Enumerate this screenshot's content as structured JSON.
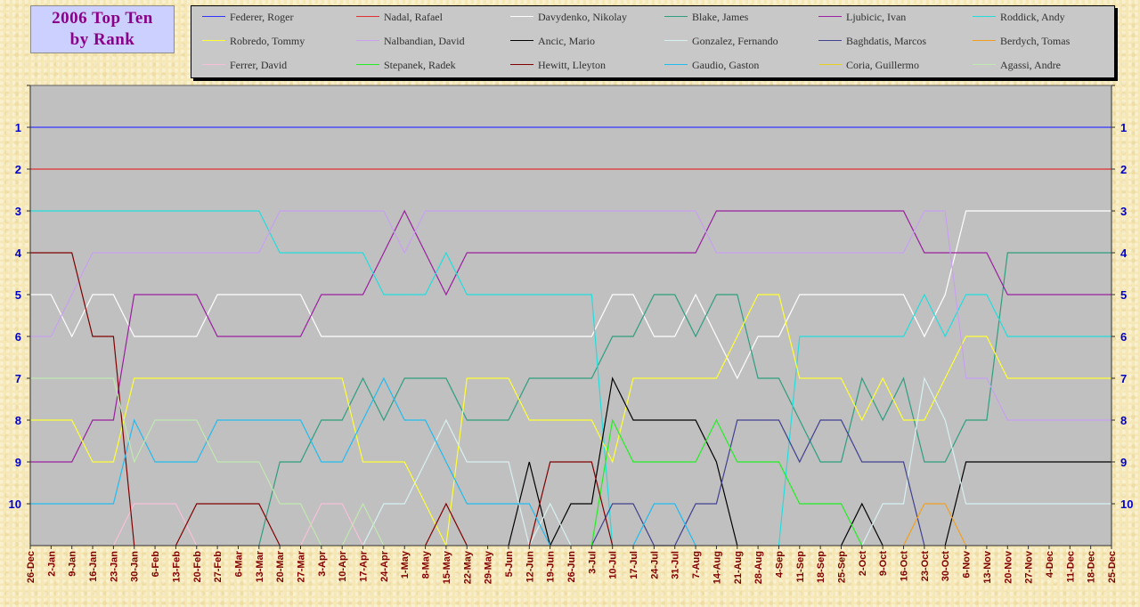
{
  "chart_data": {
    "type": "line",
    "title_line1": "2006 Top Ten",
    "title_line2": "by Rank",
    "y_ticks": [
      "1",
      "2",
      "3",
      "4",
      "5",
      "6",
      "7",
      "8",
      "9",
      "10"
    ],
    "ylim": [
      11,
      0
    ],
    "y_inverted": true,
    "legend_placement": "top",
    "grid": false,
    "background_color": "#c0c0c0",
    "x": [
      "26-Dec",
      "2-Jan",
      "9-Jan",
      "16-Jan",
      "23-Jan",
      "30-Jan",
      "6-Feb",
      "13-Feb",
      "20-Feb",
      "27-Feb",
      "6-Mar",
      "13-Mar",
      "20-Mar",
      "27-Mar",
      "3-Apr",
      "10-Apr",
      "17-Apr",
      "24-Apr",
      "1-May",
      "8-May",
      "15-May",
      "22-May",
      "29-May",
      "5-Jun",
      "12-Jun",
      "19-Jun",
      "26-Jun",
      "3-Jul",
      "10-Jul",
      "17-Jul",
      "24-Jul",
      "31-Jul",
      "7-Aug",
      "14-Aug",
      "21-Aug",
      "28-Aug",
      "4-Sep",
      "11-Sep",
      "18-Sep",
      "25-Sep",
      "2-Oct",
      "9-Oct",
      "16-Oct",
      "23-Oct",
      "30-Oct",
      "6-Nov",
      "13-Nov",
      "20-Nov",
      "27-Nov",
      "4-Dec",
      "11-Dec",
      "18-Dec",
      "25-Dec"
    ],
    "series": [
      {
        "name": "Federer, Roger",
        "color": "#3333ff",
        "values": [
          1,
          1,
          1,
          1,
          1,
          1,
          1,
          1,
          1,
          1,
          1,
          1,
          1,
          1,
          1,
          1,
          1,
          1,
          1,
          1,
          1,
          1,
          1,
          1,
          1,
          1,
          1,
          1,
          1,
          1,
          1,
          1,
          1,
          1,
          1,
          1,
          1,
          1,
          1,
          1,
          1,
          1,
          1,
          1,
          1,
          1,
          1,
          1,
          1,
          1,
          1,
          1,
          1
        ]
      },
      {
        "name": "Nadal, Rafael",
        "color": "#e03030",
        "values": [
          2,
          2,
          2,
          2,
          2,
          2,
          2,
          2,
          2,
          2,
          2,
          2,
          2,
          2,
          2,
          2,
          2,
          2,
          2,
          2,
          2,
          2,
          2,
          2,
          2,
          2,
          2,
          2,
          2,
          2,
          2,
          2,
          2,
          2,
          2,
          2,
          2,
          2,
          2,
          2,
          2,
          2,
          2,
          2,
          2,
          2,
          2,
          2,
          2,
          2,
          2,
          2,
          2
        ]
      },
      {
        "name": "Davydenko, Nikolay",
        "color": "#ffffff",
        "values": [
          5,
          5,
          6,
          5,
          5,
          6,
          6,
          6,
          6,
          5,
          5,
          5,
          5,
          5,
          6,
          6,
          6,
          6,
          6,
          6,
          6,
          6,
          6,
          6,
          6,
          6,
          6,
          6,
          5,
          5,
          6,
          6,
          5,
          6,
          7,
          6,
          6,
          5,
          5,
          5,
          5,
          5,
          5,
          6,
          5,
          3,
          3,
          3,
          3,
          3,
          3,
          3,
          3
        ]
      },
      {
        "name": "Blake, James",
        "color": "#2e9e7e",
        "values": [
          null,
          null,
          null,
          null,
          null,
          null,
          null,
          null,
          null,
          null,
          null,
          null,
          9,
          9,
          8,
          8,
          7,
          8,
          7,
          7,
          7,
          8,
          8,
          8,
          7,
          7,
          7,
          7,
          6,
          6,
          5,
          5,
          6,
          5,
          5,
          7,
          7,
          8,
          9,
          9,
          7,
          8,
          7,
          9,
          9,
          8,
          8,
          4,
          4,
          4,
          4,
          4,
          4
        ]
      },
      {
        "name": "Ljubicic, Ivan",
        "color": "#9b1fa0",
        "values": [
          9,
          9,
          9,
          8,
          8,
          5,
          5,
          5,
          5,
          6,
          6,
          6,
          6,
          6,
          5,
          5,
          5,
          4,
          3,
          4,
          5,
          4,
          4,
          4,
          4,
          4,
          4,
          4,
          4,
          4,
          4,
          4,
          4,
          3,
          3,
          3,
          3,
          3,
          3,
          3,
          3,
          3,
          3,
          4,
          4,
          4,
          4,
          5,
          5,
          5,
          5,
          5,
          5
        ]
      },
      {
        "name": "Roddick, Andy",
        "color": "#22dddd",
        "values": [
          3,
          3,
          3,
          3,
          3,
          3,
          3,
          3,
          3,
          3,
          3,
          3,
          4,
          4,
          4,
          4,
          4,
          5,
          5,
          5,
          4,
          5,
          5,
          5,
          5,
          5,
          5,
          5,
          null,
          null,
          null,
          null,
          null,
          null,
          null,
          null,
          null,
          6,
          6,
          6,
          6,
          6,
          6,
          5,
          6,
          5,
          5,
          6,
          6,
          6,
          6,
          6,
          6
        ]
      },
      {
        "name": "Robredo, Tommy",
        "color": "#ffff33",
        "values": [
          8,
          8,
          8,
          9,
          9,
          7,
          7,
          7,
          7,
          7,
          7,
          7,
          7,
          7,
          7,
          7,
          9,
          9,
          9,
          10,
          null,
          7,
          7,
          7,
          8,
          8,
          8,
          8,
          9,
          7,
          7,
          7,
          7,
          7,
          6,
          5,
          5,
          7,
          7,
          7,
          8,
          7,
          8,
          8,
          7,
          6,
          6,
          7,
          7,
          7,
          7,
          7,
          7
        ]
      },
      {
        "name": "Nalbandian, David",
        "color": "#c8a0f0",
        "values": [
          6,
          6,
          5,
          4,
          4,
          4,
          4,
          4,
          4,
          4,
          4,
          4,
          3,
          3,
          3,
          3,
          3,
          3,
          4,
          3,
          3,
          3,
          3,
          3,
          3,
          3,
          3,
          3,
          3,
          3,
          3,
          3,
          3,
          4,
          4,
          4,
          4,
          4,
          4,
          4,
          4,
          4,
          4,
          3,
          3,
          7,
          7,
          8,
          8,
          8,
          8,
          8,
          8
        ]
      },
      {
        "name": "Ancic, Mario",
        "color": "#000000",
        "values": [
          null,
          null,
          null,
          null,
          null,
          null,
          null,
          null,
          null,
          null,
          null,
          null,
          null,
          null,
          null,
          null,
          null,
          null,
          null,
          null,
          null,
          null,
          null,
          null,
          9,
          null,
          10,
          10,
          7,
          8,
          8,
          8,
          8,
          9,
          null,
          null,
          null,
          null,
          null,
          null,
          10,
          null,
          null,
          null,
          null,
          9,
          9,
          9,
          9,
          9,
          9,
          9,
          9
        ]
      },
      {
        "name": "Gonzalez, Fernando",
        "color": "#d8f0f0",
        "values": [
          null,
          null,
          null,
          null,
          null,
          null,
          null,
          null,
          null,
          null,
          null,
          null,
          null,
          null,
          null,
          null,
          null,
          10,
          10,
          9,
          8,
          9,
          9,
          9,
          null,
          10,
          null,
          null,
          null,
          null,
          null,
          null,
          null,
          null,
          null,
          null,
          null,
          null,
          null,
          null,
          null,
          10,
          10,
          7,
          8,
          10,
          10,
          10,
          10,
          10,
          10,
          10,
          10
        ]
      },
      {
        "name": "Baghdatis, Marcos",
        "color": "#404090",
        "values": [
          null,
          null,
          null,
          null,
          null,
          null,
          null,
          null,
          null,
          null,
          null,
          null,
          null,
          null,
          null,
          null,
          null,
          null,
          null,
          null,
          null,
          null,
          null,
          null,
          null,
          null,
          null,
          null,
          10,
          10,
          null,
          null,
          10,
          10,
          8,
          8,
          8,
          9,
          8,
          8,
          9,
          9,
          9,
          null,
          null,
          null,
          null,
          null,
          null,
          null,
          null,
          null,
          null
        ]
      },
      {
        "name": "Berdych, Tomas",
        "color": "#f0a020",
        "values": [
          null,
          null,
          null,
          null,
          null,
          null,
          null,
          null,
          null,
          null,
          null,
          null,
          null,
          null,
          null,
          null,
          null,
          null,
          null,
          null,
          null,
          null,
          null,
          null,
          null,
          null,
          null,
          null,
          null,
          null,
          null,
          null,
          null,
          null,
          null,
          null,
          null,
          null,
          null,
          null,
          null,
          null,
          null,
          10,
          10,
          null,
          null,
          null,
          null,
          null,
          null,
          null,
          null
        ]
      },
      {
        "name": "Ferrer, David",
        "color": "#f8c0d8",
        "values": [
          null,
          null,
          null,
          null,
          null,
          10,
          10,
          10,
          null,
          null,
          null,
          null,
          null,
          null,
          10,
          10,
          null,
          null,
          null,
          null,
          null,
          null,
          null,
          null,
          null,
          null,
          null,
          null,
          null,
          null,
          null,
          null,
          null,
          null,
          null,
          null,
          null,
          null,
          null,
          null,
          null,
          null,
          null,
          null,
          null,
          null,
          null,
          null,
          null,
          null,
          null,
          null,
          null
        ]
      },
      {
        "name": "Stepanek, Radek",
        "color": "#22ee22",
        "values": [
          null,
          null,
          null,
          null,
          null,
          null,
          null,
          null,
          null,
          null,
          null,
          null,
          null,
          null,
          null,
          null,
          null,
          null,
          null,
          null,
          null,
          null,
          null,
          null,
          null,
          null,
          null,
          null,
          8,
          9,
          9,
          9,
          9,
          8,
          9,
          9,
          9,
          10,
          10,
          10,
          null,
          null,
          null,
          null,
          null,
          null,
          null,
          null,
          null,
          null,
          null,
          null,
          null
        ]
      },
      {
        "name": "Hewitt, Lleyton",
        "color": "#800000",
        "values": [
          4,
          4,
          4,
          6,
          6,
          null,
          null,
          null,
          10,
          10,
          10,
          10,
          null,
          null,
          null,
          null,
          null,
          null,
          null,
          null,
          10,
          null,
          null,
          null,
          null,
          9,
          9,
          9,
          null,
          null,
          null,
          null,
          null,
          null,
          null,
          null,
          null,
          null,
          null,
          null,
          null,
          null,
          null,
          null,
          null,
          null,
          null,
          null,
          null,
          null,
          null,
          null,
          null
        ]
      },
      {
        "name": "Gaudio, Gaston",
        "color": "#22bbee",
        "values": [
          10,
          10,
          10,
          10,
          10,
          8,
          9,
          9,
          9,
          8,
          8,
          8,
          8,
          8,
          9,
          9,
          8,
          7,
          8,
          8,
          9,
          10,
          10,
          10,
          10,
          null,
          null,
          null,
          null,
          null,
          10,
          10,
          null,
          null,
          null,
          null,
          null,
          null,
          null,
          null,
          null,
          null,
          null,
          null,
          null,
          null,
          null,
          null,
          null,
          null,
          null,
          null,
          null
        ]
      },
      {
        "name": "Coria, Guillermo",
        "color": "#e8d020",
        "values": [
          null,
          null,
          null,
          null,
          null,
          null,
          null,
          null,
          null,
          null,
          null,
          null,
          null,
          null,
          null,
          null,
          null,
          null,
          null,
          null,
          null,
          null,
          null,
          null,
          null,
          null,
          null,
          null,
          null,
          null,
          null,
          null,
          null,
          null,
          null,
          null,
          null,
          null,
          null,
          null,
          null,
          null,
          null,
          null,
          null,
          null,
          null,
          null,
          null,
          null,
          null,
          null,
          null
        ]
      },
      {
        "name": "Agassi, Andre",
        "color": "#c0e8b0",
        "values": [
          7,
          7,
          7,
          7,
          7,
          9,
          8,
          8,
          8,
          9,
          9,
          9,
          10,
          10,
          null,
          null,
          10,
          null,
          null,
          null,
          null,
          null,
          null,
          null,
          null,
          null,
          null,
          null,
          null,
          null,
          null,
          null,
          null,
          null,
          null,
          null,
          null,
          null,
          null,
          null,
          null,
          null,
          null,
          null,
          null,
          null,
          null,
          null,
          null,
          null,
          null,
          null,
          null
        ]
      }
    ]
  }
}
